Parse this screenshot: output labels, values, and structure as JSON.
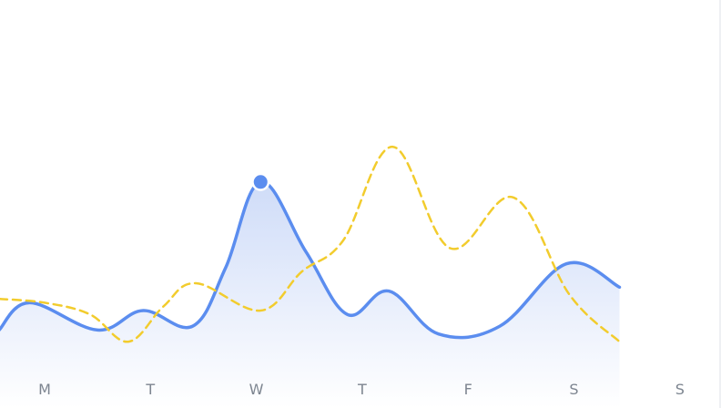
{
  "chart_data": {
    "type": "line",
    "categories": [
      "M",
      "T",
      "W",
      "T",
      "F",
      "S",
      "S"
    ],
    "x_domain": [
      -0.43,
      6.43
    ],
    "ylim": [
      0,
      100
    ],
    "series": [
      {
        "style": "solid-area",
        "color": "#5b8def",
        "area_color": "#d4e1fb",
        "points": [
          [
            -0.43,
            20
          ],
          [
            -0.14,
            27
          ],
          [
            0.5,
            20
          ],
          [
            0.93,
            25
          ],
          [
            1.4,
            21
          ],
          [
            1.71,
            36
          ],
          [
            2.04,
            58
          ],
          [
            2.47,
            40
          ],
          [
            2.86,
            24
          ],
          [
            3.25,
            30
          ],
          [
            3.72,
            19
          ],
          [
            4.3,
            21
          ],
          [
            4.93,
            37
          ],
          [
            5.43,
            31
          ]
        ]
      },
      {
        "style": "dashed",
        "color": "#f2cc2d",
        "points": [
          [
            -0.43,
            28
          ],
          [
            0.0,
            27
          ],
          [
            0.43,
            24
          ],
          [
            0.79,
            17
          ],
          [
            1.12,
            26
          ],
          [
            1.43,
            32
          ],
          [
            2.04,
            25
          ],
          [
            2.43,
            35
          ],
          [
            2.82,
            43
          ],
          [
            3.29,
            67
          ],
          [
            3.83,
            41
          ],
          [
            4.43,
            54
          ],
          [
            4.96,
            29
          ],
          [
            5.43,
            17
          ]
        ]
      }
    ],
    "marker": {
      "series": 0,
      "x": 2.04,
      "y": 58,
      "color": "#5b8def"
    },
    "grid": false,
    "legend": "none"
  }
}
